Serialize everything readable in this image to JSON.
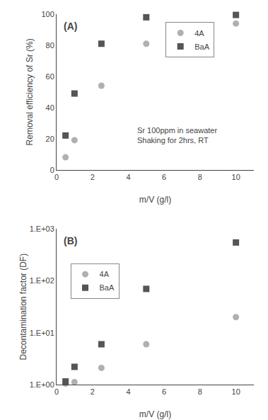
{
  "chart_data": [
    {
      "type": "scatter",
      "title": "(A)",
      "xlabel": "m/V (g/l)",
      "ylabel": "Removal efficiency of Sr (%)",
      "annotations": [
        "Sr 100ppm in seawater\nShaking for 2hrs, RT"
      ],
      "x": [
        0.5,
        1.0,
        2.5,
        5.0,
        10.0
      ],
      "series": [
        {
          "name": "4A",
          "color": "#b0b0b0",
          "marker": "circle",
          "values": [
            8,
            19,
            54,
            81,
            94
          ]
        },
        {
          "name": "BaA",
          "color": "#555555",
          "marker": "square",
          "values": [
            22,
            49,
            81,
            98,
            99.5
          ]
        }
      ],
      "xlim": [
        0,
        11
      ],
      "ylim": [
        0,
        100
      ],
      "xticks": [
        0,
        2,
        4,
        6,
        8,
        10
      ],
      "yticks": [
        0,
        20,
        40,
        60,
        80,
        100
      ],
      "grid": false,
      "legend": "upper right"
    },
    {
      "type": "scatter",
      "title": "(B)",
      "xlabel": "m/V (g/l)",
      "ylabel": "Decontamination factor (DF)",
      "x": [
        0.5,
        1.0,
        2.5,
        5.0,
        10.0
      ],
      "series": [
        {
          "name": "4A",
          "color": "#b0b0b0",
          "marker": "circle",
          "values": [
            1.05,
            1.12,
            2.1,
            6.0,
            20
          ]
        },
        {
          "name": "BaA",
          "color": "#555555",
          "marker": "square",
          "values": [
            1.15,
            2.2,
            6.0,
            70,
            550
          ]
        }
      ],
      "xlim": [
        0,
        11
      ],
      "ylim": [
        1.0,
        1000
      ],
      "xticks": [
        0,
        2,
        4,
        6,
        8,
        10
      ],
      "yticks": [
        {
          "value": 1,
          "label": "1.E+00"
        },
        {
          "value": 10,
          "label": "1.E+01"
        },
        {
          "value": 100,
          "label": "1.E+02"
        },
        {
          "value": 1000,
          "label": "1.E+03"
        }
      ],
      "log": "y",
      "grid": false,
      "legend": "upper left"
    }
  ]
}
